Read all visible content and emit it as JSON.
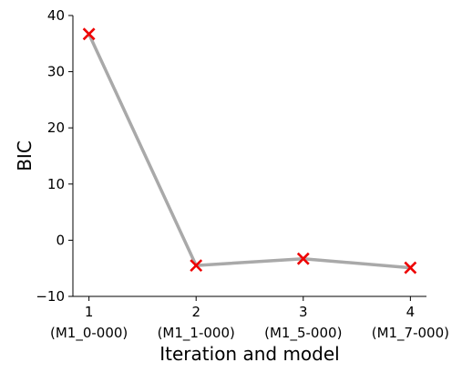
{
  "chart_data": {
    "type": "line",
    "x": [
      1,
      2,
      3,
      4
    ],
    "x_tick_labels": [
      "1",
      "2",
      "3",
      "4"
    ],
    "x_tick_sublabels": [
      "(M1_0-000)",
      "(M1_1-000)",
      "(M1_5-000)",
      "(M1_7-000)"
    ],
    "series": [
      {
        "values": [
          36.7,
          -4.5,
          -3.3,
          -4.9
        ],
        "line_color": "#a9a9a9",
        "marker": "x",
        "marker_color": "#ee0000"
      }
    ],
    "title": "",
    "xlabel": "Iteration and model",
    "ylabel": "BIC",
    "ylim": [
      -10,
      40
    ],
    "y_ticks": [
      -10,
      0,
      10,
      20,
      30,
      40
    ],
    "xlim": [
      0.85,
      4.15
    ],
    "grid": false,
    "legend": "none",
    "spines": [
      "left",
      "bottom"
    ]
  }
}
